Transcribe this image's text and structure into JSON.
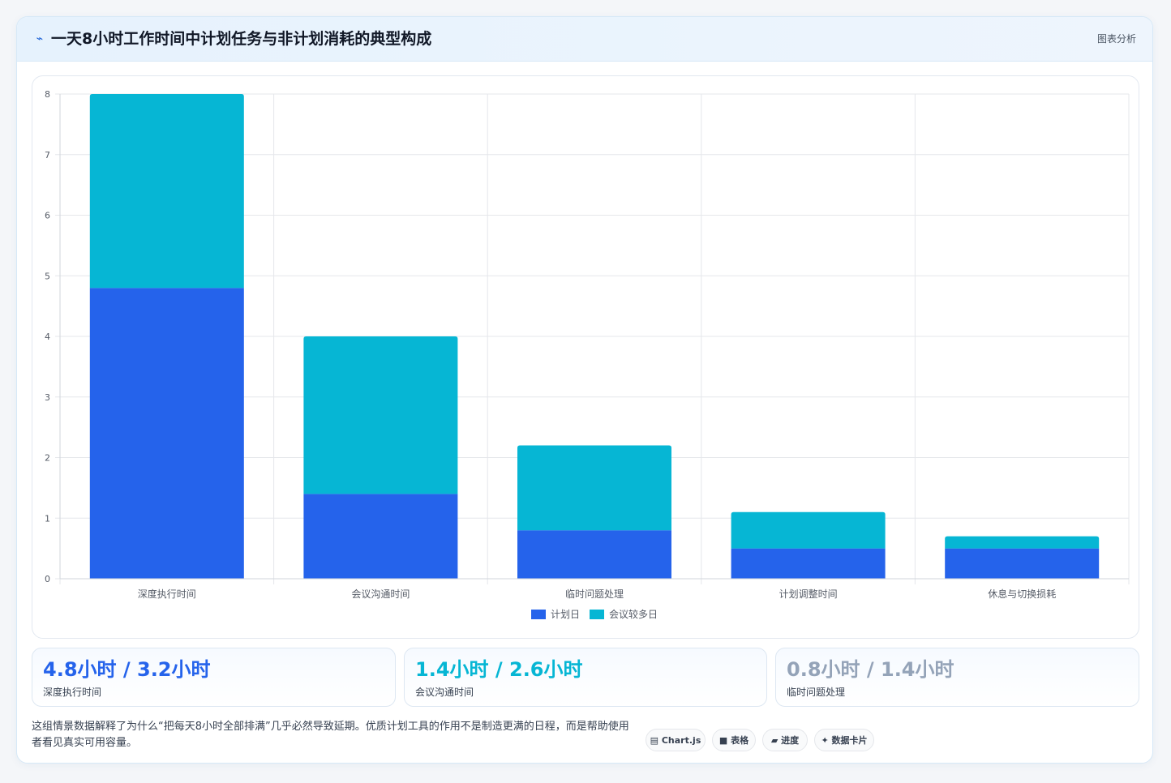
{
  "header": {
    "icon": "chart-spark-icon",
    "title": "一天8小时工作时间中计划任务与非计划消耗的典型构成",
    "link_label": "图表分析"
  },
  "colors": {
    "series_1": "#2563eb",
    "series_2": "#06b6d4",
    "stat_3": "#94a3b8",
    "grid": "#e5e7eb"
  },
  "chart_data": {
    "type": "bar",
    "stacked": true,
    "categories": [
      "深度执行时间",
      "会议沟通时间",
      "临时问题处理",
      "计划调整时间",
      "休息与切换损耗"
    ],
    "series": [
      {
        "name": "计划日",
        "values": [
          4.8,
          1.4,
          0.8,
          0.5,
          0.5
        ],
        "color": "#2563eb"
      },
      {
        "name": "会议较多日",
        "values": [
          3.2,
          2.6,
          1.4,
          0.6,
          0.2
        ],
        "color": "#06b6d4"
      }
    ],
    "ylim": [
      0,
      8
    ],
    "yticks": [
      "0",
      "1",
      "2",
      "3",
      "4",
      "5",
      "6",
      "7",
      "8"
    ],
    "grid": true,
    "legend_position": "bottom"
  },
  "stats": [
    {
      "value": "4.8小时 / 3.2小时",
      "label": "深度执行时间",
      "color": "#2563eb"
    },
    {
      "value": "1.4小时 / 2.6小时",
      "label": "会议沟通时间",
      "color": "#06b6d4"
    },
    {
      "value": "0.8小时 / 1.4小时",
      "label": "临时问题处理",
      "color": "#94a3b8"
    }
  ],
  "footnote": "这组情景数据解释了为什么“把每天8小时全部排满”几乎必然导致延期。优质计划工具的作用不是制造更满的日程，而是帮助使用者看见真实可用容量。",
  "tags": [
    {
      "icon": "▤",
      "icon_name": "chartjs-icon",
      "label": "Chart.js"
    },
    {
      "icon": "■",
      "icon_name": "table-icon",
      "label": "表格"
    },
    {
      "icon": "▰",
      "icon_name": "progress-icon",
      "label": "进度"
    },
    {
      "icon": "✦",
      "icon_name": "sparkle-icon",
      "label": "数据卡片"
    }
  ]
}
